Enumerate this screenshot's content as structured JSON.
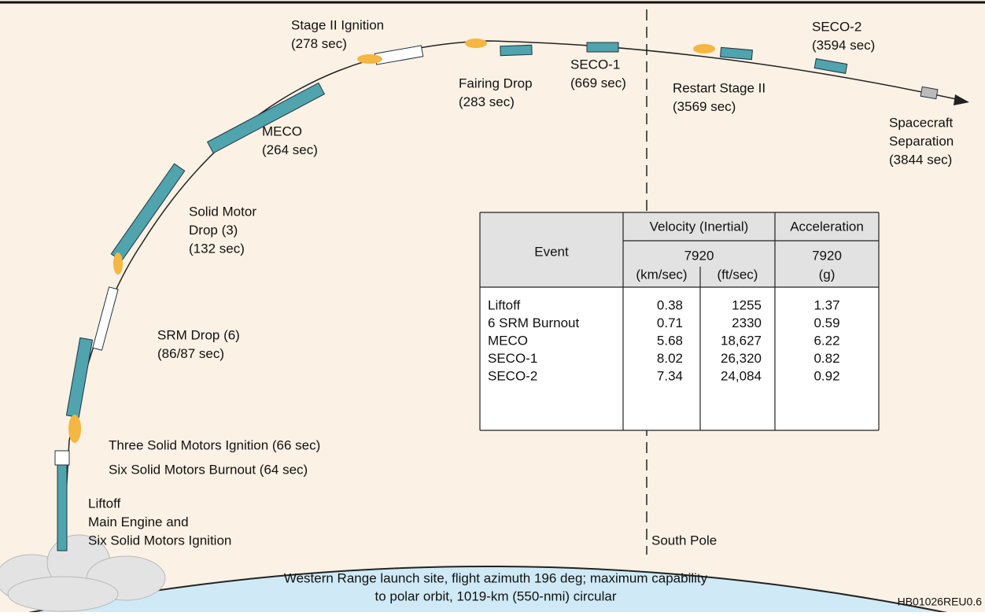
{
  "labels": [
    {
      "lines": [
        "Stage II Ignition",
        "(278 sec)"
      ]
    },
    {
      "lines": [
        "Fairing Drop",
        "(283 sec)"
      ]
    },
    {
      "lines": [
        "SECO-1",
        "(669 sec)"
      ]
    },
    {
      "lines": [
        "Restart Stage II",
        "(3569 sec)"
      ]
    },
    {
      "lines": [
        "SECO-2",
        "(3594 sec)"
      ]
    },
    {
      "lines": [
        "Spacecraft",
        "Separation",
        "(3844 sec)"
      ]
    },
    {
      "lines": [
        "MECO",
        "(264 sec)"
      ]
    },
    {
      "lines": [
        "Solid Motor",
        "Drop (3)",
        "(132 sec)"
      ]
    },
    {
      "lines": [
        "SRM Drop (6)",
        "(86/87 sec)"
      ]
    },
    {
      "lines": [
        "Three Solid Motors Ignition (66 sec)"
      ]
    },
    {
      "lines": [
        "Six Solid Motors Burnout (64 sec)"
      ]
    },
    {
      "lines": [
        "Liftoff",
        "Main Engine and",
        "Six Solid Motors Ignition"
      ]
    }
  ],
  "south_pole": "South Pole",
  "table": {
    "header": {
      "event": "Event",
      "velocity": "Velocity (Inertial)",
      "acceleration": "Acceleration",
      "velocity_ref": "7920",
      "acceleration_ref": "7920",
      "units": [
        "(km/sec)",
        "(ft/sec)",
        "(g)"
      ]
    },
    "rows": [
      [
        "Liftoff",
        "0.38",
        "1255",
        "1.37"
      ],
      [
        "6 SRM Burnout",
        "0.71",
        "2330",
        "0.59"
      ],
      [
        "MECO",
        "5.68",
        "18,627",
        "6.22"
      ],
      [
        "SECO-1",
        "8.02",
        "26,320",
        "0.82"
      ],
      [
        "SECO-2",
        "7.34",
        "24,084",
        "0.92"
      ]
    ]
  },
  "caption": [
    "Western Range launch site, flight azimuth 196 deg; maximum capability",
    "to polar orbit, 1019-km (550-nmi) circular"
  ],
  "code": "HB01026REU0.6"
}
